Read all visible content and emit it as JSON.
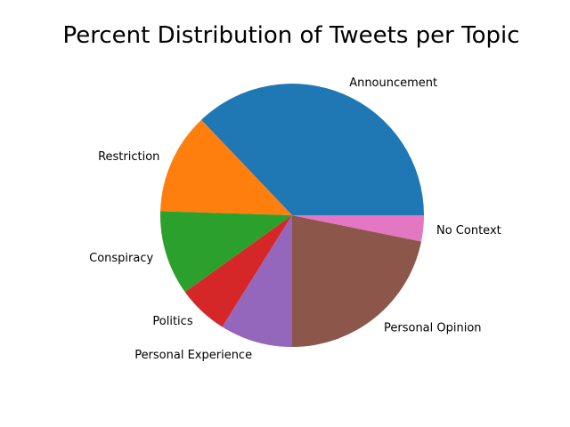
{
  "chart_data": {
    "type": "pie",
    "title": "Percent Distribution of Tweets per Topic",
    "categories": [
      "Announcement",
      "Restriction",
      "Conspiracy",
      "Politics",
      "Personal Experience",
      "Personal Opinion",
      "No Context"
    ],
    "values": [
      37.1,
      12.4,
      10.4,
      6.2,
      8.9,
      21.8,
      3.2
    ],
    "colors": [
      "#1f77b4",
      "#ff7f0e",
      "#2ca02c",
      "#d62728",
      "#9467bd",
      "#8c564b",
      "#e377c2"
    ],
    "start_angle_deg": 0,
    "direction": "counterclockwise"
  }
}
